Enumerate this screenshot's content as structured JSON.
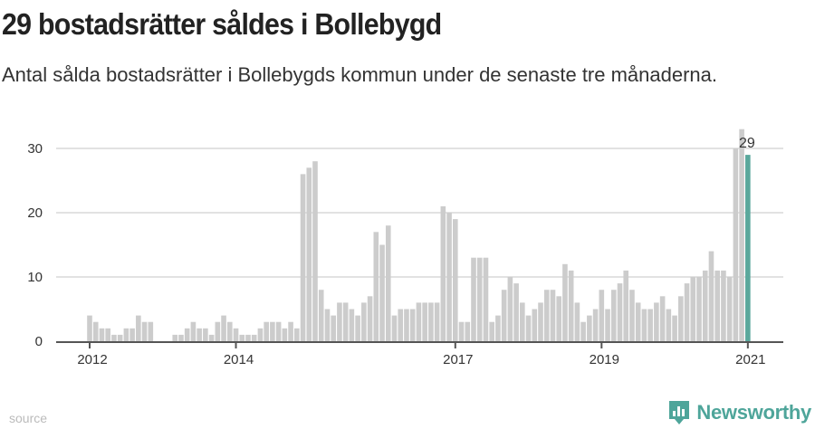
{
  "header": {
    "title": "29 bostadsrätter såldes i Bollebygd",
    "subtitle": "Antal sålda bostadsrätter i Bollebygds kommun under de senaste tre månaderna."
  },
  "footer": {
    "source": "source",
    "logo": "Newsworthy"
  },
  "colors": {
    "bar": "#cccccc",
    "highlight": "#5aa89c",
    "grid": "#e2e2e2",
    "axis": "#555555"
  },
  "chart_data": {
    "type": "bar",
    "title": "29 bostadsrätter såldes i Bollebygd",
    "xlabel": "",
    "ylabel": "",
    "start": "2012-01",
    "frequency": "monthly",
    "ylim": [
      0,
      33
    ],
    "yticks": [
      0,
      10,
      20,
      30
    ],
    "xticks": [
      {
        "label": "2012",
        "index": 0
      },
      {
        "label": "2014",
        "index": 24
      },
      {
        "label": "2017",
        "index": 60
      },
      {
        "label": "2019",
        "index": 84
      },
      {
        "label": "2021",
        "index": 108
      }
    ],
    "values": [
      4,
      3,
      2,
      2,
      1,
      1,
      2,
      2,
      4,
      3,
      3,
      0,
      0,
      0,
      1,
      1,
      2,
      3,
      2,
      2,
      1,
      3,
      4,
      3,
      2,
      1,
      1,
      1,
      2,
      3,
      3,
      3,
      2,
      3,
      2,
      26,
      27,
      28,
      8,
      5,
      4,
      6,
      6,
      5,
      4,
      6,
      7,
      17,
      15,
      18,
      4,
      5,
      5,
      5,
      6,
      6,
      6,
      6,
      21,
      20,
      19,
      3,
      3,
      13,
      13,
      13,
      3,
      4,
      8,
      10,
      9,
      6,
      4,
      5,
      6,
      8,
      8,
      7,
      12,
      11,
      6,
      3,
      4,
      5,
      8,
      5,
      8,
      9,
      11,
      8,
      6,
      5,
      5,
      6,
      7,
      5,
      4,
      7,
      9,
      10,
      10,
      11,
      14,
      11,
      11,
      10,
      30,
      33,
      29
    ],
    "highlight_index": 108,
    "highlight_label": "29",
    "grid": true
  }
}
